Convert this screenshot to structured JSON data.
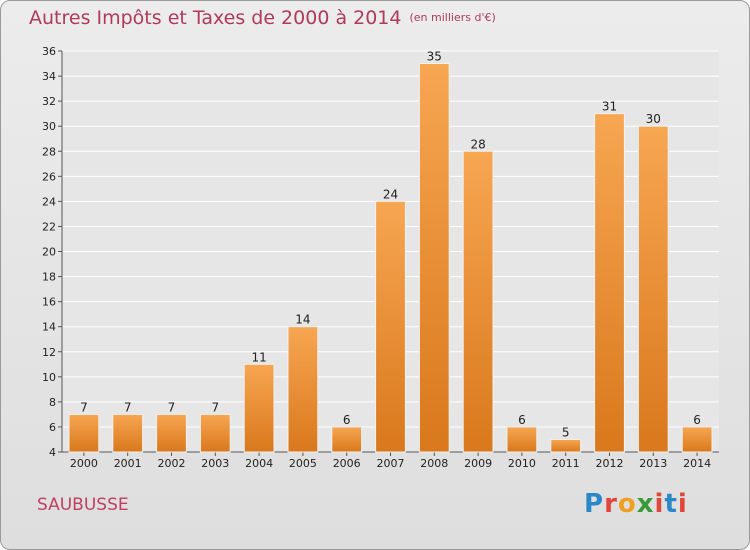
{
  "title": "Autres Impôts et Taxes de 2000 à 2014",
  "unit_note": "(en milliers d'€)",
  "commune": "SAUBUSSE",
  "logo": {
    "p": "P",
    "r": "r",
    "o": "o",
    "x": "x",
    "i": "i",
    "t": "t",
    "i2": "i"
  },
  "colors": {
    "bar": "#f5a04f",
    "bar_dark": "#d97a1e",
    "title": "#b03a5b"
  },
  "chart_data": {
    "type": "bar",
    "categories": [
      "2000",
      "2001",
      "2002",
      "2003",
      "2004",
      "2005",
      "2006",
      "2007",
      "2008",
      "2009",
      "2010",
      "2011",
      "2012",
      "2013",
      "2014"
    ],
    "values": [
      7,
      7,
      7,
      7,
      11,
      14,
      6,
      24,
      35,
      28,
      6,
      5,
      31,
      30,
      6
    ],
    "ylim": [
      4,
      36
    ],
    "yticks": [
      4,
      6,
      8,
      10,
      12,
      14,
      16,
      18,
      20,
      22,
      24,
      26,
      28,
      30,
      32,
      34,
      36
    ],
    "grid": true
  }
}
